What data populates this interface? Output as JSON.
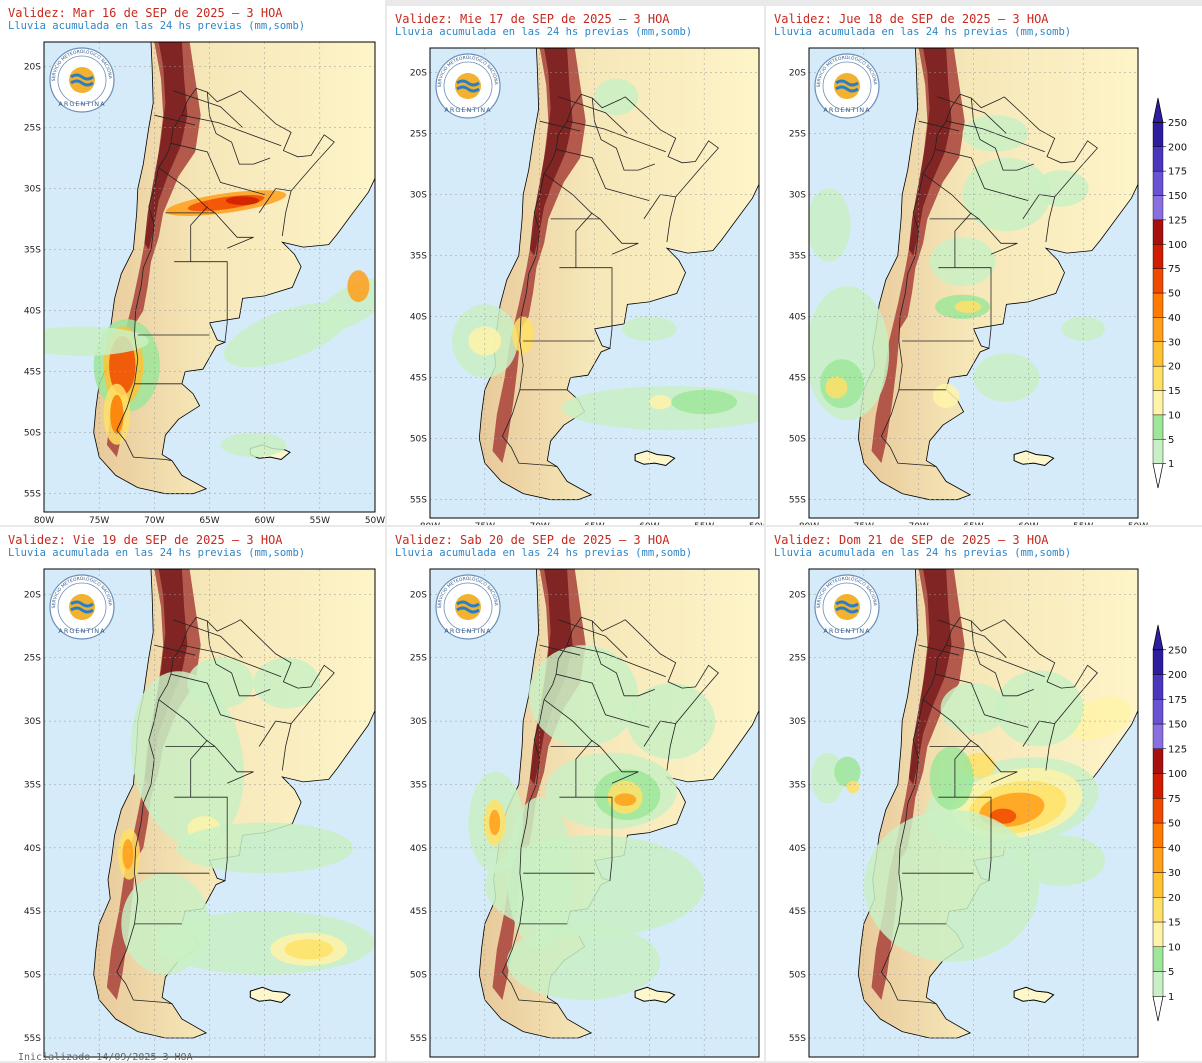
{
  "panels": [
    {
      "title": "Validez: Mar 16 de SEP de 2025 – 3 HOA",
      "subtitle": "Lluvia acumulada en las 24 hs previas (mm,somb)"
    },
    {
      "title": "Validez: Mie 17 de SEP de 2025 – 3 HOA",
      "subtitle": "Lluvia acumulada en las 24 hs previas (mm,somb)"
    },
    {
      "title": "Validez: Jue 18 de SEP de 2025 – 3 HOA",
      "subtitle": "Lluvia acumulada en las 24 hs previas (mm,somb)"
    },
    {
      "title": "Validez: Vie 19 de SEP de 2025 – 3 HOA",
      "subtitle": "Lluvia acumulada en las 24 hs previas (mm,somb)"
    },
    {
      "title": "Validez: Sab 20 de SEP de 2025 – 3 HOA",
      "subtitle": "Lluvia acumulada en las 24 hs previas (mm,somb)"
    },
    {
      "title": "Validez: Dom 21 de SEP de 2025 – 3 HOA",
      "subtitle": "Lluvia acumulada en las 24 hs previas (mm,somb)"
    }
  ],
  "lat_labels": [
    "20S",
    "25S",
    "30S",
    "35S",
    "40S",
    "45S",
    "50S",
    "55S"
  ],
  "lon_labels": [
    "80W",
    "75W",
    "70W",
    "65W",
    "60W",
    "55W",
    "50W"
  ],
  "colorbar": {
    "levels": [
      "1",
      "5",
      "10",
      "15",
      "20",
      "30",
      "40",
      "50",
      "75",
      "100",
      "125",
      "150",
      "175",
      "200",
      "250"
    ],
    "colors": [
      "#ffffff",
      "#c9f0c4",
      "#9ee69a",
      "#fff3a8",
      "#ffe066",
      "#ffc233",
      "#ff9f1a",
      "#ff7a00",
      "#f04a00",
      "#d01c00",
      "#a80f0f",
      "#8a6fe0",
      "#6a52d4",
      "#4b36c0",
      "#2e1d9e"
    ]
  },
  "logo": {
    "org": "SERVICIO METEOROLÓGICO NACIONAL",
    "country": "ARGENTINA"
  },
  "footer": "Inicializado 14/09/2025 3 HOA",
  "map_colors": {
    "ocean": "#d6ebfa",
    "land_low": "#fff7cc",
    "land_mid": "#e8c99a",
    "mountain": "#a8423a",
    "peaks": "#7a1f1f"
  }
}
